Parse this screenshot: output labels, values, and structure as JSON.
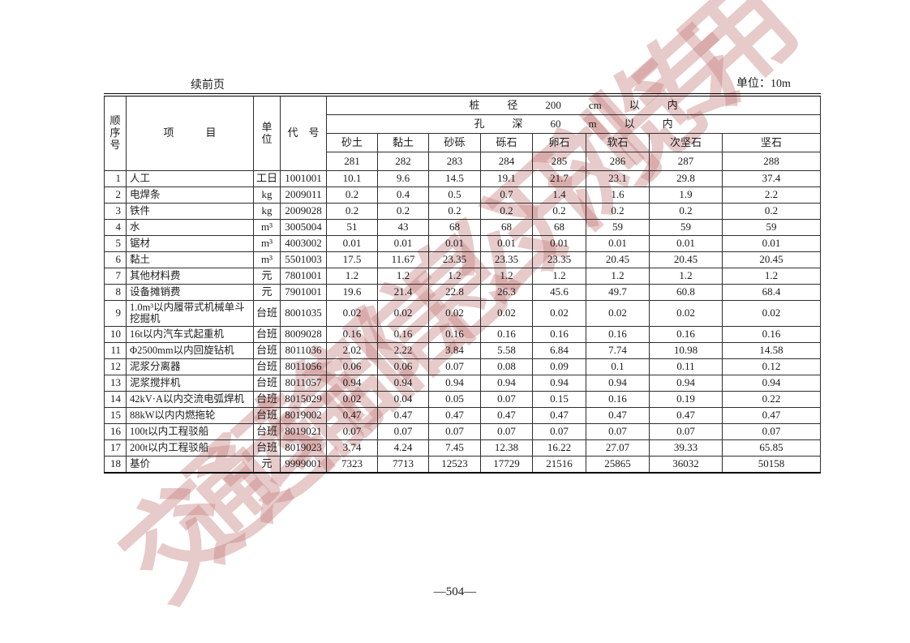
{
  "page": {
    "continuation_note": "续前页",
    "unit_label": "单位：10m",
    "page_number": "—504—",
    "watermark_text": "交通运输部信息公开浏览专用",
    "watermark_color": "#c58080"
  },
  "table": {
    "header": {
      "seq_label": "顺\n序\n号",
      "item_label": "项　　　目",
      "unit_label": "单\n位",
      "code_label": "代　号",
      "pile_diameter_parts": [
        "桩",
        "径",
        "200",
        "cm",
        "以",
        "内"
      ],
      "hole_depth_parts": [
        "孔",
        "深",
        "60",
        "m",
        "以",
        "内"
      ],
      "materials": [
        "砂土",
        "黏土",
        "砂砾",
        "砾石",
        "卵石",
        "软石",
        "次坚石",
        "坚石"
      ],
      "column_numbers": [
        "281",
        "282",
        "283",
        "284",
        "285",
        "286",
        "287",
        "288"
      ]
    },
    "rows": [
      {
        "no": "1",
        "item": "人工",
        "unit": "工日",
        "code": "1001001",
        "values": [
          "10.1",
          "9.6",
          "14.5",
          "19.1",
          "21.7",
          "23.1",
          "29.8",
          "37.4"
        ]
      },
      {
        "no": "2",
        "item": "电焊条",
        "unit": "kg",
        "code": "2009011",
        "values": [
          "0.2",
          "0.4",
          "0.5",
          "0.7",
          "1.4",
          "1.6",
          "1.9",
          "2.2"
        ]
      },
      {
        "no": "3",
        "item": "铁件",
        "unit": "kg",
        "code": "2009028",
        "values": [
          "0.2",
          "0.2",
          "0.2",
          "0.2",
          "0.2",
          "0.2",
          "0.2",
          "0.2"
        ]
      },
      {
        "no": "4",
        "item": "水",
        "unit": "m³",
        "code": "3005004",
        "values": [
          "51",
          "43",
          "68",
          "68",
          "68",
          "59",
          "59",
          "59"
        ]
      },
      {
        "no": "5",
        "item": "锯材",
        "unit": "m³",
        "code": "4003002",
        "values": [
          "0.01",
          "0.01",
          "0.01",
          "0.01",
          "0.01",
          "0.01",
          "0.01",
          "0.01"
        ]
      },
      {
        "no": "6",
        "item": "黏土",
        "unit": "m³",
        "code": "5501003",
        "values": [
          "17.5",
          "11.67",
          "23.35",
          "23.35",
          "23.35",
          "20.45",
          "20.45",
          "20.45"
        ]
      },
      {
        "no": "7",
        "item": "其他材料费",
        "unit": "元",
        "code": "7801001",
        "values": [
          "1.2",
          "1.2",
          "1.2",
          "1.2",
          "1.2",
          "1.2",
          "1.2",
          "1.2"
        ]
      },
      {
        "no": "8",
        "item": "设备摊销费",
        "unit": "元",
        "code": "7901001",
        "values": [
          "19.6",
          "21.4",
          "22.8",
          "26.3",
          "45.6",
          "49.7",
          "60.8",
          "68.4"
        ]
      },
      {
        "no": "9",
        "item": "1.0m³以内履带式机械单斗挖掘机",
        "unit": "台班",
        "code": "8001035",
        "values": [
          "0.02",
          "0.02",
          "0.02",
          "0.02",
          "0.02",
          "0.02",
          "0.02",
          "0.02"
        ]
      },
      {
        "no": "10",
        "item": "16t以内汽车式起重机",
        "unit": "台班",
        "code": "8009028",
        "values": [
          "0.16",
          "0.16",
          "0.16",
          "0.16",
          "0.16",
          "0.16",
          "0.16",
          "0.16"
        ]
      },
      {
        "no": "11",
        "item": "Φ2500mm以内回旋钻机",
        "unit": "台班",
        "code": "8011036",
        "values": [
          "2.02",
          "2.22",
          "3.84",
          "5.58",
          "6.84",
          "7.74",
          "10.98",
          "14.58"
        ]
      },
      {
        "no": "12",
        "item": "泥浆分离器",
        "unit": "台班",
        "code": "8011056",
        "values": [
          "0.06",
          "0.06",
          "0.07",
          "0.08",
          "0.09",
          "0.1",
          "0.11",
          "0.12"
        ]
      },
      {
        "no": "13",
        "item": "泥浆搅拌机",
        "unit": "台班",
        "code": "8011057",
        "values": [
          "0.94",
          "0.94",
          "0.94",
          "0.94",
          "0.94",
          "0.94",
          "0.94",
          "0.94"
        ]
      },
      {
        "no": "14",
        "item": "42kV·A以内交流电弧焊机",
        "unit": "台班",
        "code": "8015029",
        "values": [
          "0.02",
          "0.04",
          "0.05",
          "0.07",
          "0.15",
          "0.16",
          "0.19",
          "0.22"
        ]
      },
      {
        "no": "15",
        "item": "88kW以内内燃拖轮",
        "unit": "台班",
        "code": "8019002",
        "values": [
          "0.47",
          "0.47",
          "0.47",
          "0.47",
          "0.47",
          "0.47",
          "0.47",
          "0.47"
        ]
      },
      {
        "no": "16",
        "item": "100t以内工程驳船",
        "unit": "台班",
        "code": "8019021",
        "values": [
          "0.07",
          "0.07",
          "0.07",
          "0.07",
          "0.07",
          "0.07",
          "0.07",
          "0.07"
        ]
      },
      {
        "no": "17",
        "item": "200t以内工程驳船",
        "unit": "台班",
        "code": "8019023",
        "values": [
          "3.74",
          "4.24",
          "7.45",
          "12.38",
          "16.22",
          "27.07",
          "39.33",
          "65.85"
        ]
      },
      {
        "no": "18",
        "item": "基价",
        "unit": "元",
        "code": "9999001",
        "values": [
          "7323",
          "7713",
          "12523",
          "17729",
          "21516",
          "25865",
          "36032",
          "50158"
        ]
      }
    ]
  }
}
